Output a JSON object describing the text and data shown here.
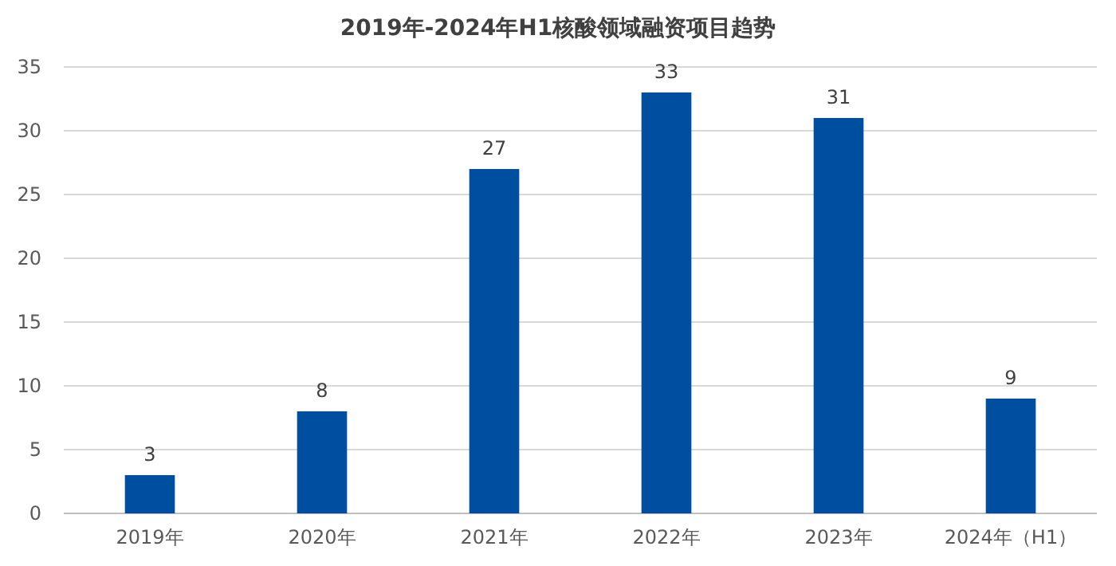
{
  "chart_data": {
    "type": "bar",
    "title": "2019年-2024年H1核酸领域融资项目趋势",
    "categories": [
      "2019年",
      "2020年",
      "2021年",
      "2022年",
      "2023年",
      "2024年（H1）"
    ],
    "values": [
      3,
      8,
      27,
      33,
      31,
      9
    ],
    "color": "#004e9f",
    "ylim": [
      0,
      35
    ],
    "yticks": [
      0,
      5,
      10,
      15,
      20,
      25,
      30,
      35
    ],
    "grid": "y",
    "data_labels": true
  }
}
